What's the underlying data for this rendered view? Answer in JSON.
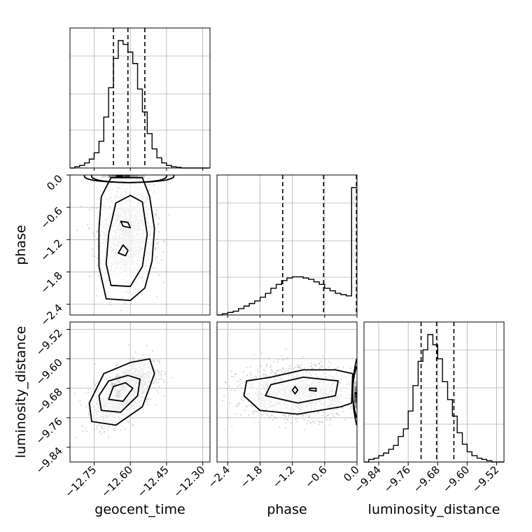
{
  "chart_data": {
    "type": "corner",
    "grid": true,
    "parameters": [
      {
        "name": "geocent_time",
        "label": "geocent_time",
        "range": [
          -12.85,
          -12.27
        ],
        "ticks": [
          -12.75,
          -12.6,
          -12.45,
          -12.3
        ],
        "tick_labels": [
          "−12.75",
          "−12.60",
          "−12.45",
          "−12.30"
        ],
        "quantiles": [
          -12.67,
          -12.61,
          -12.54
        ],
        "histogram": {
          "edges": [
            -12.85,
            -12.83,
            -12.81,
            -12.79,
            -12.77,
            -12.75,
            -12.73,
            -12.71,
            -12.69,
            -12.67,
            -12.65,
            -12.63,
            -12.61,
            -12.59,
            -12.57,
            -12.55,
            -12.53,
            -12.51,
            -12.49,
            -12.47,
            -12.45,
            -12.43,
            -12.41,
            -12.39,
            -12.37,
            -12.35,
            -12.33,
            -12.31,
            -12.29,
            -12.27
          ],
          "counts": [
            0.0,
            0.01,
            0.02,
            0.04,
            0.07,
            0.12,
            0.21,
            0.4,
            0.63,
            0.86,
            1.0,
            0.97,
            0.91,
            0.82,
            0.62,
            0.44,
            0.27,
            0.15,
            0.08,
            0.04,
            0.02,
            0.01,
            0.005,
            0.0,
            0.0,
            0.0,
            0.0,
            0.0,
            0.0
          ]
        }
      },
      {
        "name": "phase",
        "label": "phase",
        "range": [
          -2.6,
          0.0
        ],
        "ticks": [
          -2.4,
          -1.8,
          -1.2,
          -0.6,
          0.0
        ],
        "tick_labels": [
          "−2.4",
          "−1.8",
          "−1.2",
          "−0.6",
          "0.0"
        ],
        "quantiles": [
          -1.38,
          -0.62,
          -0.01
        ],
        "histogram": {
          "edges": [
            -2.6,
            -2.5,
            -2.4,
            -2.3,
            -2.2,
            -2.1,
            -2.0,
            -1.9,
            -1.8,
            -1.7,
            -1.6,
            -1.5,
            -1.4,
            -1.3,
            -1.2,
            -1.1,
            -1.0,
            -0.9,
            -0.8,
            -0.7,
            -0.6,
            -0.5,
            -0.4,
            -0.3,
            -0.2,
            -0.1,
            0.0
          ],
          "counts": [
            0.0,
            0.01,
            0.02,
            0.03,
            0.05,
            0.07,
            0.09,
            0.11,
            0.14,
            0.17,
            0.21,
            0.24,
            0.27,
            0.29,
            0.3,
            0.3,
            0.29,
            0.28,
            0.26,
            0.24,
            0.21,
            0.19,
            0.17,
            0.16,
            0.15,
            1.0
          ]
        }
      },
      {
        "name": "luminosity_distance",
        "label": "luminosity_distance",
        "range": [
          -9.88,
          -9.5
        ],
        "ticks": [
          -9.84,
          -9.76,
          -9.68,
          -9.6,
          -9.52
        ],
        "tick_labels": [
          "−9.84",
          "−9.76",
          "−9.68",
          "−9.60",
          "−9.52"
        ],
        "quantiles": [
          -9.725,
          -9.683,
          -9.636
        ],
        "histogram": {
          "edges": [
            -9.88,
            -9.867,
            -9.853,
            -9.84,
            -9.827,
            -9.813,
            -9.8,
            -9.787,
            -9.773,
            -9.76,
            -9.747,
            -9.733,
            -9.72,
            -9.707,
            -9.693,
            -9.68,
            -9.667,
            -9.653,
            -9.64,
            -9.627,
            -9.613,
            -9.6,
            -9.587,
            -9.573,
            -9.56,
            -9.547,
            -9.533,
            -9.52,
            -9.507,
            -9.5
          ],
          "counts": [
            0.0,
            0.02,
            0.03,
            0.05,
            0.07,
            0.1,
            0.13,
            0.2,
            0.26,
            0.4,
            0.6,
            0.79,
            0.88,
            1.0,
            0.92,
            0.81,
            0.63,
            0.49,
            0.36,
            0.23,
            0.14,
            0.08,
            0.05,
            0.03,
            0.02,
            0.01,
            0.0,
            0.0,
            0.0
          ]
        }
      }
    ],
    "pairs": [
      {
        "x": "geocent_time",
        "y": "phase",
        "contours": [
          [
            [
              -12.7,
              -2.3
            ],
            [
              -12.6,
              -2.33
            ],
            [
              -12.54,
              -2.1
            ],
            [
              -12.51,
              -1.6
            ],
            [
              -12.5,
              -1.0
            ],
            [
              -12.52,
              -0.4
            ],
            [
              -12.55,
              -0.05
            ],
            [
              -12.68,
              -0.05
            ],
            [
              -12.72,
              -0.4
            ],
            [
              -12.73,
              -1.0
            ],
            [
              -12.73,
              -1.7
            ]
          ],
          [
            [
              -12.68,
              -2.05
            ],
            [
              -12.6,
              -2.07
            ],
            [
              -12.55,
              -1.7
            ],
            [
              -12.53,
              -1.1
            ],
            [
              -12.55,
              -0.5
            ],
            [
              -12.6,
              -0.38
            ],
            [
              -12.66,
              -0.52
            ],
            [
              -12.69,
              -1.1
            ],
            [
              -12.7,
              -1.65
            ]
          ],
          [
            [
              -12.65,
              -1.45
            ],
            [
              -12.62,
              -1.5
            ],
            [
              -12.61,
              -1.4
            ],
            [
              -12.63,
              -1.3
            ]
          ],
          [
            [
              -12.63,
              -0.95
            ],
            [
              -12.6,
              -0.98
            ],
            [
              -12.61,
              -0.88
            ],
            [
              -12.64,
              -0.86
            ]
          ]
        ],
        "points": 1400
      },
      {
        "x": "geocent_time",
        "y": "luminosity_distance",
        "contours": [
          [
            [
              -12.76,
              -9.77
            ],
            [
              -12.66,
              -9.78
            ],
            [
              -12.55,
              -9.73
            ],
            [
              -12.5,
              -9.64
            ],
            [
              -12.52,
              -9.6
            ],
            [
              -12.6,
              -9.61
            ],
            [
              -12.71,
              -9.64
            ],
            [
              -12.77,
              -9.72
            ]
          ],
          [
            [
              -12.72,
              -9.74
            ],
            [
              -12.64,
              -9.745
            ],
            [
              -12.57,
              -9.7
            ],
            [
              -12.56,
              -9.655
            ],
            [
              -12.61,
              -9.645
            ],
            [
              -12.69,
              -9.66
            ],
            [
              -12.73,
              -9.7
            ]
          ],
          [
            [
              -12.69,
              -9.71
            ],
            [
              -12.63,
              -9.715
            ],
            [
              -12.59,
              -9.68
            ],
            [
              -12.62,
              -9.665
            ],
            [
              -12.67,
              -9.675
            ]
          ]
        ],
        "points": 1400
      },
      {
        "x": "phase",
        "y": "luminosity_distance",
        "contours": [
          [
            [
              -2.1,
              -9.7
            ],
            [
              -1.8,
              -9.74
            ],
            [
              -1.1,
              -9.75
            ],
            [
              -0.3,
              -9.73
            ],
            [
              -0.1,
              -9.72
            ],
            [
              -0.08,
              -9.64
            ],
            [
              -0.4,
              -9.63
            ],
            [
              -1.0,
              -9.63
            ],
            [
              -1.6,
              -9.65
            ],
            [
              -2.05,
              -9.66
            ]
          ],
          [
            [
              -1.7,
              -9.7
            ],
            [
              -1.1,
              -9.72
            ],
            [
              -0.4,
              -9.7
            ],
            [
              -0.35,
              -9.66
            ],
            [
              -1.0,
              -9.65
            ],
            [
              -1.6,
              -9.67
            ]
          ],
          [
            [
              -1.2,
              -9.685
            ],
            [
              -1.15,
              -9.695
            ],
            [
              -1.1,
              -9.685
            ],
            [
              -1.15,
              -9.675
            ]
          ],
          [
            [
              -0.88,
              -9.685
            ],
            [
              -0.76,
              -9.688
            ],
            [
              -0.76,
              -9.68
            ],
            [
              -0.88,
              -9.68
            ]
          ]
        ],
        "points": 1400
      }
    ]
  }
}
